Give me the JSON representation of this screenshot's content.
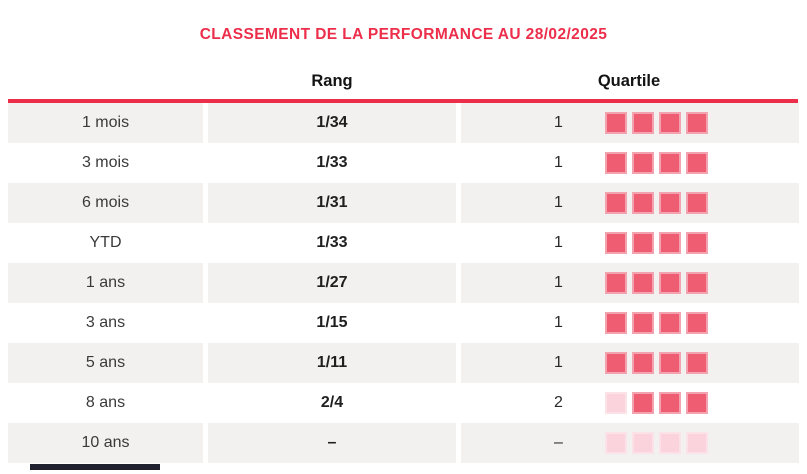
{
  "title": "CLASSEMENT DE LA PERFORMANCE AU 28/02/2025",
  "columns": {
    "rang": "Rang",
    "quartile": "Quartile"
  },
  "rows": [
    {
      "period": "1 mois",
      "rank": "1/34",
      "quartile": "1",
      "squares": [
        "dark",
        "dark",
        "dark",
        "dark"
      ]
    },
    {
      "period": "3 mois",
      "rank": "1/33",
      "quartile": "1",
      "squares": [
        "dark",
        "dark",
        "dark",
        "dark"
      ]
    },
    {
      "period": "6 mois",
      "rank": "1/31",
      "quartile": "1",
      "squares": [
        "dark",
        "dark",
        "dark",
        "dark"
      ]
    },
    {
      "period": "YTD",
      "rank": "1/33",
      "quartile": "1",
      "squares": [
        "dark",
        "dark",
        "dark",
        "dark"
      ]
    },
    {
      "period": "1 ans",
      "rank": "1/27",
      "quartile": "1",
      "squares": [
        "dark",
        "dark",
        "dark",
        "dark"
      ]
    },
    {
      "period": "3 ans",
      "rank": "1/15",
      "quartile": "1",
      "squares": [
        "dark",
        "dark",
        "dark",
        "dark"
      ]
    },
    {
      "period": "5 ans",
      "rank": "1/11",
      "quartile": "1",
      "squares": [
        "dark",
        "dark",
        "dark",
        "dark"
      ]
    },
    {
      "period": "8 ans",
      "rank": "2/4",
      "quartile": "2",
      "squares": [
        "light",
        "dark",
        "dark",
        "dark"
      ]
    },
    {
      "period": "10 ans",
      "rank": "–",
      "quartile": "–",
      "squares": [
        "light",
        "light",
        "light",
        "light"
      ]
    }
  ],
  "colors": {
    "accent_red": "#ED2E4B",
    "square_dark": "#EE5D72",
    "square_light": "#FBD3DD",
    "row_gray": "#F2F1EF",
    "bottom_bar": "#20222F"
  }
}
